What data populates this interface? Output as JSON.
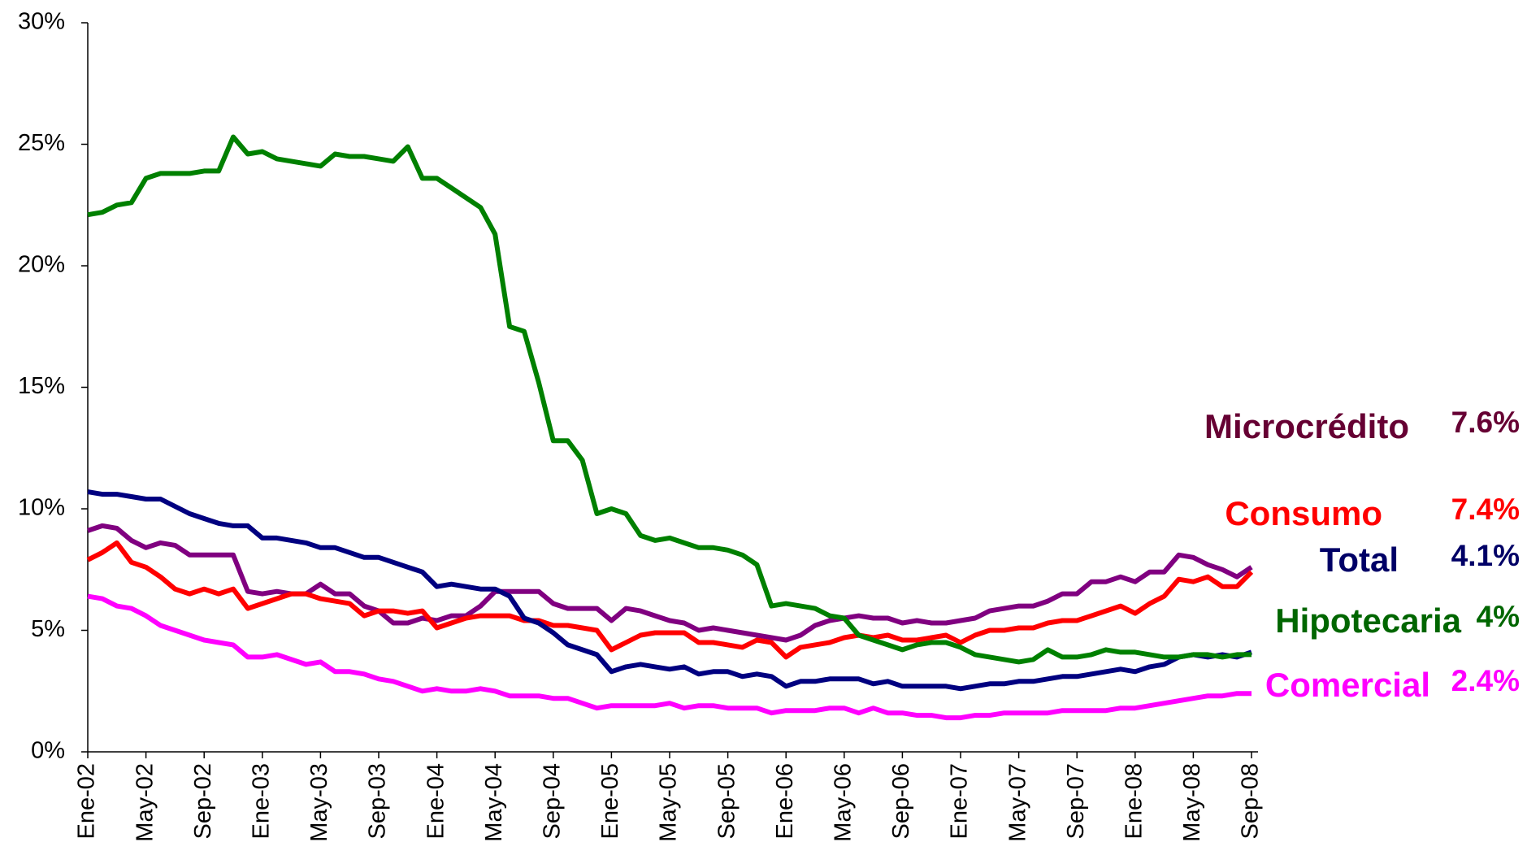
{
  "chart_data": {
    "type": "line",
    "categories": [
      "Ene-02",
      null,
      null,
      null,
      "May-02",
      null,
      null,
      null,
      "Sep-02",
      null,
      null,
      null,
      "Ene-03",
      null,
      null,
      null,
      "May-03",
      null,
      null,
      null,
      "Sep-03",
      null,
      null,
      null,
      "Ene-04",
      null,
      null,
      null,
      "May-04",
      null,
      null,
      null,
      "Sep-04",
      null,
      null,
      null,
      "Ene-05",
      null,
      null,
      null,
      "May-05",
      null,
      null,
      null,
      "Sep-05",
      null,
      null,
      null,
      "Ene-06",
      null,
      null,
      null,
      "May-06",
      null,
      null,
      null,
      "Sep-06",
      null,
      null,
      null,
      "Ene-07",
      null,
      null,
      null,
      "May-07",
      null,
      null,
      null,
      "Sep-07",
      null,
      null,
      null,
      "Ene-08",
      null,
      null,
      null,
      "May-08",
      null,
      null,
      null,
      "Sep-08"
    ],
    "ylim": [
      0,
      30
    ],
    "yticks": [
      {
        "value": 0,
        "label": "0%"
      },
      {
        "value": 5,
        "label": "5%"
      },
      {
        "value": 10,
        "label": "10%"
      },
      {
        "value": 15,
        "label": "15%"
      },
      {
        "value": 20,
        "label": "20%"
      },
      {
        "value": 25,
        "label": "25%"
      },
      {
        "value": 30,
        "label": "30%"
      }
    ],
    "grid": false,
    "series": [
      {
        "name": "Microcrédito",
        "color": "#800080",
        "label_color": "#660033",
        "end_label": "7.6%",
        "values": [
          9.1,
          9.3,
          9.2,
          8.7,
          8.4,
          8.6,
          8.5,
          8.1,
          8.1,
          8.1,
          8.1,
          6.6,
          6.5,
          6.6,
          6.5,
          6.5,
          6.9,
          6.5,
          6.5,
          6.0,
          5.8,
          5.3,
          5.3,
          5.5,
          5.4,
          5.6,
          5.6,
          6.0,
          6.6,
          6.6,
          6.6,
          6.6,
          6.1,
          5.9,
          5.9,
          5.9,
          5.4,
          5.9,
          5.8,
          5.6,
          5.4,
          5.3,
          5.0,
          5.1,
          5.0,
          4.9,
          4.8,
          4.7,
          4.6,
          4.8,
          5.2,
          5.4,
          5.5,
          5.6,
          5.5,
          5.5,
          5.3,
          5.4,
          5.3,
          5.3,
          5.4,
          5.5,
          5.8,
          5.9,
          6.0,
          6.0,
          6.2,
          6.5,
          6.5,
          7.0,
          7.0,
          7.2,
          7.0,
          7.4,
          7.4,
          8.1,
          8.0,
          7.7,
          7.5,
          7.2,
          7.6
        ]
      },
      {
        "name": "Consumo",
        "color": "#ff0000",
        "label_color": "#ff0000",
        "end_label": "7.4%",
        "values": [
          7.9,
          8.2,
          8.6,
          7.8,
          7.6,
          7.2,
          6.7,
          6.5,
          6.7,
          6.5,
          6.7,
          5.9,
          6.1,
          6.3,
          6.5,
          6.5,
          6.3,
          6.2,
          6.1,
          5.6,
          5.8,
          5.8,
          5.7,
          5.8,
          5.1,
          5.3,
          5.5,
          5.6,
          5.6,
          5.6,
          5.4,
          5.4,
          5.2,
          5.2,
          5.1,
          5.0,
          4.2,
          4.5,
          4.8,
          4.9,
          4.9,
          4.9,
          4.5,
          4.5,
          4.4,
          4.3,
          4.6,
          4.5,
          3.9,
          4.3,
          4.4,
          4.5,
          4.7,
          4.8,
          4.7,
          4.8,
          4.6,
          4.6,
          4.7,
          4.8,
          4.5,
          4.8,
          5.0,
          5.0,
          5.1,
          5.1,
          5.3,
          5.4,
          5.4,
          5.6,
          5.8,
          6.0,
          5.7,
          6.1,
          6.4,
          7.1,
          7.0,
          7.2,
          6.8,
          6.8,
          7.4
        ]
      },
      {
        "name": "Total",
        "color": "#000080",
        "label_color": "#000066",
        "end_label": "4.1%",
        "values": [
          10.7,
          10.6,
          10.6,
          10.5,
          10.4,
          10.4,
          10.1,
          9.8,
          9.6,
          9.4,
          9.3,
          9.3,
          8.8,
          8.8,
          8.7,
          8.6,
          8.4,
          8.4,
          8.2,
          8.0,
          8.0,
          7.8,
          7.6,
          7.4,
          6.8,
          6.9,
          6.8,
          6.7,
          6.7,
          6.4,
          5.5,
          5.3,
          4.9,
          4.4,
          4.2,
          4.0,
          3.3,
          3.5,
          3.6,
          3.5,
          3.4,
          3.5,
          3.2,
          3.3,
          3.3,
          3.1,
          3.2,
          3.1,
          2.7,
          2.9,
          2.9,
          3.0,
          3.0,
          3.0,
          2.8,
          2.9,
          2.7,
          2.7,
          2.7,
          2.7,
          2.6,
          2.7,
          2.8,
          2.8,
          2.9,
          2.9,
          3.0,
          3.1,
          3.1,
          3.2,
          3.3,
          3.4,
          3.3,
          3.5,
          3.6,
          3.9,
          4.0,
          3.9,
          4.0,
          3.9,
          4.1
        ]
      },
      {
        "name": "Hipotecaria",
        "color": "#008000",
        "label_color": "#006600",
        "end_label": "4%",
        "values": [
          22.1,
          22.2,
          22.5,
          22.6,
          23.6,
          23.8,
          23.8,
          23.8,
          23.9,
          23.9,
          25.3,
          24.6,
          24.7,
          24.4,
          24.3,
          24.2,
          24.1,
          24.6,
          24.5,
          24.5,
          24.4,
          24.3,
          24.9,
          23.6,
          23.6,
          23.2,
          22.8,
          22.4,
          21.3,
          17.5,
          17.3,
          15.2,
          12.8,
          12.8,
          12.0,
          9.8,
          10.0,
          9.8,
          8.9,
          8.7,
          8.8,
          8.6,
          8.4,
          8.4,
          8.3,
          8.1,
          7.7,
          6.0,
          6.1,
          6.0,
          5.9,
          5.6,
          5.5,
          4.8,
          4.6,
          4.4,
          4.2,
          4.4,
          4.5,
          4.5,
          4.3,
          4.0,
          3.9,
          3.8,
          3.7,
          3.8,
          4.2,
          3.9,
          3.9,
          4.0,
          4.2,
          4.1,
          4.1,
          4.0,
          3.9,
          3.9,
          4.0,
          4.0,
          3.9,
          4.0,
          4.0
        ]
      },
      {
        "name": "Comercial",
        "color": "#ff00ff",
        "label_color": "#ff00ff",
        "end_label": "2.4%",
        "values": [
          6.4,
          6.3,
          6.0,
          5.9,
          5.6,
          5.2,
          5.0,
          4.8,
          4.6,
          4.5,
          4.4,
          3.9,
          3.9,
          4.0,
          3.8,
          3.6,
          3.7,
          3.3,
          3.3,
          3.2,
          3.0,
          2.9,
          2.7,
          2.5,
          2.6,
          2.5,
          2.5,
          2.6,
          2.5,
          2.3,
          2.3,
          2.3,
          2.2,
          2.2,
          2.0,
          1.8,
          1.9,
          1.9,
          1.9,
          1.9,
          2.0,
          1.8,
          1.9,
          1.9,
          1.8,
          1.8,
          1.8,
          1.6,
          1.7,
          1.7,
          1.7,
          1.8,
          1.8,
          1.6,
          1.8,
          1.6,
          1.6,
          1.5,
          1.5,
          1.4,
          1.4,
          1.5,
          1.5,
          1.6,
          1.6,
          1.6,
          1.6,
          1.7,
          1.7,
          1.7,
          1.7,
          1.8,
          1.8,
          1.9,
          2.0,
          2.1,
          2.2,
          2.3,
          2.3,
          2.4,
          2.4
        ]
      }
    ]
  }
}
